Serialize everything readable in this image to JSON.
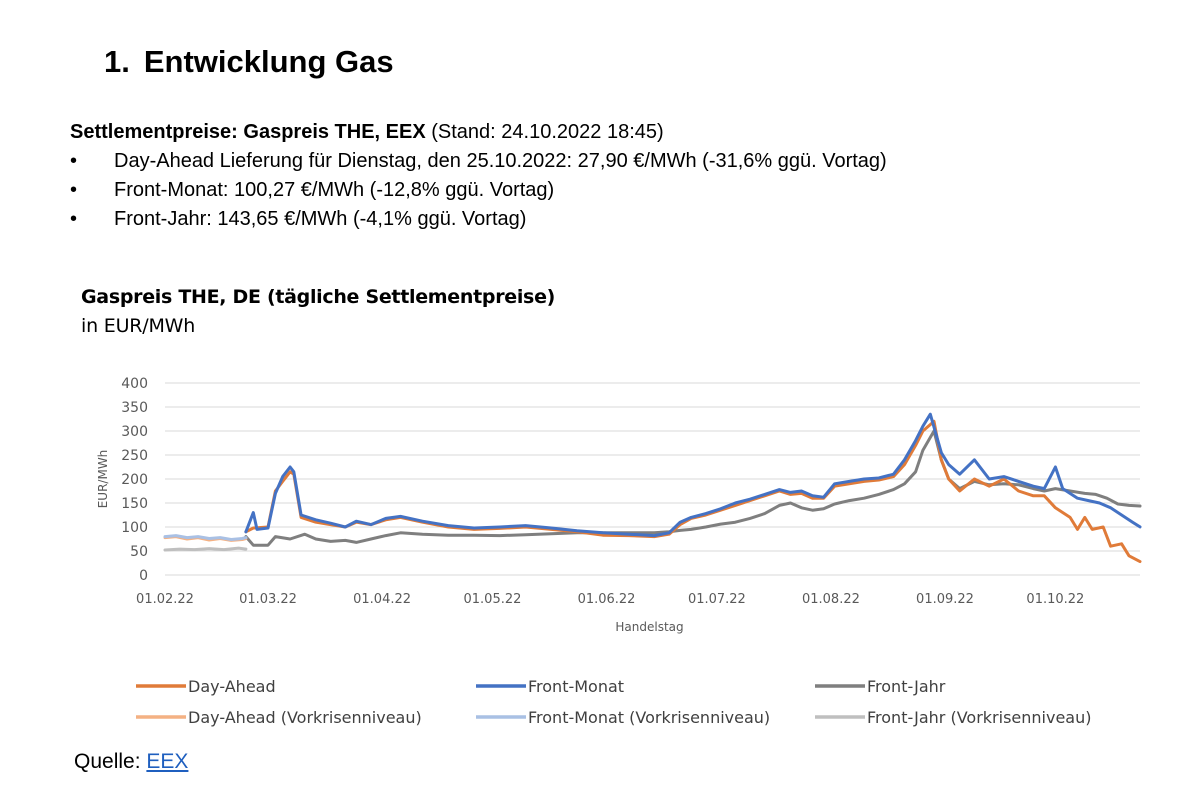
{
  "section": {
    "number": "1.",
    "title": "Entwicklung Gas"
  },
  "settlement": {
    "label": "Settlementpreise: Gaspreis THE, EEX",
    "stand": "(Stand: 24.10.2022 18:45)",
    "bullets": [
      "Day-Ahead Lieferung für Dienstag, den 25.10.2022: 27,90 €/MWh (-31,6% ggü. Vortag)",
      "Front-Monat: 100,27 €/MWh (-12,8% ggü. Vortag)",
      "Front-Jahr: 143,65 €/MWh (-4,1% ggü. Vortag)"
    ],
    "bullet_glyph": "•"
  },
  "source": {
    "label": "Quelle:",
    "link_text": "EEX"
  },
  "chart_data": {
    "type": "line",
    "title": "Gaspreis THE, DE (tägliche Settlementpreise)",
    "subtitle": "in EUR/MWh",
    "xlabel": "Handelstag",
    "ylabel": "EUR/MWh",
    "ylim": [
      0,
      400
    ],
    "yticks": [
      0,
      50,
      100,
      150,
      200,
      250,
      300,
      350,
      400
    ],
    "xlim": [
      "2022-02-01",
      "2022-10-24"
    ],
    "xticks": [
      {
        "date": "2022-02-01",
        "label": "01.02.22"
      },
      {
        "date": "2022-03-01",
        "label": "01.03.22"
      },
      {
        "date": "2022-04-01",
        "label": "01.04.22"
      },
      {
        "date": "2022-05-01",
        "label": "01.05.22"
      },
      {
        "date": "2022-06-01",
        "label": "01.06.22"
      },
      {
        "date": "2022-07-01",
        "label": "01.07.22"
      },
      {
        "date": "2022-08-01",
        "label": "01.08.22"
      },
      {
        "date": "2022-09-01",
        "label": "01.09.22"
      },
      {
        "date": "2022-10-01",
        "label": "01.10.22"
      }
    ],
    "grid": "horizontal",
    "legend_position": "bottom",
    "series": [
      {
        "name": "Front-Jahr",
        "color": "#7f7f7f",
        "points": [
          [
            "2022-02-23",
            "80"
          ],
          [
            "2022-02-25",
            "62"
          ],
          [
            "2022-03-01",
            "62"
          ],
          [
            "2022-03-03",
            "80"
          ],
          [
            "2022-03-07",
            "75"
          ],
          [
            "2022-03-11",
            "85"
          ],
          [
            "2022-03-14",
            "75"
          ],
          [
            "2022-03-18",
            "70"
          ],
          [
            "2022-03-22",
            "72"
          ],
          [
            "2022-03-25",
            "68"
          ],
          [
            "2022-03-29",
            "75"
          ],
          [
            "2022-04-02",
            "82"
          ],
          [
            "2022-04-06",
            "88"
          ],
          [
            "2022-04-12",
            "85"
          ],
          [
            "2022-04-19",
            "83"
          ],
          [
            "2022-04-26",
            "83"
          ],
          [
            "2022-05-03",
            "82"
          ],
          [
            "2022-05-10",
            "84"
          ],
          [
            "2022-05-17",
            "86"
          ],
          [
            "2022-05-24",
            "88"
          ],
          [
            "2022-05-31",
            "88"
          ],
          [
            "2022-06-07",
            "88"
          ],
          [
            "2022-06-14",
            "88"
          ],
          [
            "2022-06-18",
            "90"
          ],
          [
            "2022-06-21",
            "93"
          ],
          [
            "2022-06-24",
            "95"
          ],
          [
            "2022-06-28",
            "100"
          ],
          [
            "2022-07-02",
            "106"
          ],
          [
            "2022-07-06",
            "110"
          ],
          [
            "2022-07-10",
            "118"
          ],
          [
            "2022-07-14",
            "128"
          ],
          [
            "2022-07-18",
            "145"
          ],
          [
            "2022-07-21",
            "150"
          ],
          [
            "2022-07-24",
            "140"
          ],
          [
            "2022-07-27",
            "135"
          ],
          [
            "2022-07-30",
            "138"
          ],
          [
            "2022-08-02",
            "148"
          ],
          [
            "2022-08-06",
            "155"
          ],
          [
            "2022-08-10",
            "160"
          ],
          [
            "2022-08-14",
            "168"
          ],
          [
            "2022-08-18",
            "178"
          ],
          [
            "2022-08-21",
            "190"
          ],
          [
            "2022-08-24",
            "215"
          ],
          [
            "2022-08-26",
            "260"
          ],
          [
            "2022-08-29",
            "300"
          ],
          [
            "2022-08-31",
            "240"
          ],
          [
            "2022-09-02",
            "200"
          ],
          [
            "2022-09-05",
            "180"
          ],
          [
            "2022-09-09",
            "195"
          ],
          [
            "2022-09-13",
            "188"
          ],
          [
            "2022-09-17",
            "190"
          ],
          [
            "2022-09-21",
            "188"
          ],
          [
            "2022-09-25",
            "180"
          ],
          [
            "2022-09-28",
            "175"
          ],
          [
            "2022-10-01",
            "180"
          ],
          [
            "2022-10-05",
            "175"
          ],
          [
            "2022-10-09",
            "170"
          ],
          [
            "2022-10-12",
            "168"
          ],
          [
            "2022-10-15",
            "160"
          ],
          [
            "2022-10-18",
            "148"
          ],
          [
            "2022-10-21",
            "145"
          ],
          [
            "2022-10-24",
            "143.65"
          ]
        ]
      },
      {
        "name": "Day-Ahead",
        "color": "#e07b39",
        "points": [
          [
            "2022-02-23",
            "90"
          ],
          [
            "2022-02-25",
            "98"
          ],
          [
            "2022-03-01",
            "100"
          ],
          [
            "2022-03-03",
            "175"
          ],
          [
            "2022-03-05",
            "195"
          ],
          [
            "2022-03-07",
            "215"
          ],
          [
            "2022-03-08",
            "210"
          ],
          [
            "2022-03-10",
            "120"
          ],
          [
            "2022-03-14",
            "110"
          ],
          [
            "2022-03-18",
            "105"
          ],
          [
            "2022-03-22",
            "100"
          ],
          [
            "2022-03-25",
            "110"
          ],
          [
            "2022-03-29",
            "105"
          ],
          [
            "2022-04-02",
            "115"
          ],
          [
            "2022-04-06",
            "120"
          ],
          [
            "2022-04-12",
            "110"
          ],
          [
            "2022-04-19",
            "100"
          ],
          [
            "2022-04-26",
            "95"
          ],
          [
            "2022-05-03",
            "97"
          ],
          [
            "2022-05-10",
            "100"
          ],
          [
            "2022-05-17",
            "95"
          ],
          [
            "2022-05-24",
            "90"
          ],
          [
            "2022-05-31",
            "83"
          ],
          [
            "2022-06-07",
            "82"
          ],
          [
            "2022-06-14",
            "80"
          ],
          [
            "2022-06-18",
            "85"
          ],
          [
            "2022-06-21",
            "105"
          ],
          [
            "2022-06-24",
            "118"
          ],
          [
            "2022-06-28",
            "125"
          ],
          [
            "2022-07-02",
            "135"
          ],
          [
            "2022-07-06",
            "145"
          ],
          [
            "2022-07-10",
            "155"
          ],
          [
            "2022-07-14",
            "165"
          ],
          [
            "2022-07-18",
            "175"
          ],
          [
            "2022-07-21",
            "168"
          ],
          [
            "2022-07-24",
            "170"
          ],
          [
            "2022-07-27",
            "160"
          ],
          [
            "2022-07-30",
            "160"
          ],
          [
            "2022-08-02",
            "185"
          ],
          [
            "2022-08-06",
            "190"
          ],
          [
            "2022-08-10",
            "195"
          ],
          [
            "2022-08-14",
            "198"
          ],
          [
            "2022-08-18",
            "205"
          ],
          [
            "2022-08-21",
            "230"
          ],
          [
            "2022-08-24",
            "270"
          ],
          [
            "2022-08-26",
            "300"
          ],
          [
            "2022-08-29",
            "320"
          ],
          [
            "2022-08-31",
            "240"
          ],
          [
            "2022-09-02",
            "200"
          ],
          [
            "2022-09-05",
            "175"
          ],
          [
            "2022-09-09",
            "200"
          ],
          [
            "2022-09-13",
            "185"
          ],
          [
            "2022-09-17",
            "200"
          ],
          [
            "2022-09-21",
            "175"
          ],
          [
            "2022-09-25",
            "165"
          ],
          [
            "2022-09-28",
            "165"
          ],
          [
            "2022-10-01",
            "140"
          ],
          [
            "2022-10-05",
            "120"
          ],
          [
            "2022-10-07",
            "95"
          ],
          [
            "2022-10-09",
            "120"
          ],
          [
            "2022-10-11",
            "95"
          ],
          [
            "2022-10-14",
            "100"
          ],
          [
            "2022-10-16",
            "60"
          ],
          [
            "2022-10-19",
            "65"
          ],
          [
            "2022-10-21",
            "40"
          ],
          [
            "2022-10-24",
            "27.9"
          ]
        ]
      },
      {
        "name": "Front-Monat",
        "color": "#4472c4",
        "points": [
          [
            "2022-02-23",
            "90"
          ],
          [
            "2022-02-25",
            "130"
          ],
          [
            "2022-02-26",
            "95"
          ],
          [
            "2022-03-01",
            "98"
          ],
          [
            "2022-03-03",
            "170"
          ],
          [
            "2022-03-05",
            "205"
          ],
          [
            "2022-03-07",
            "225"
          ],
          [
            "2022-03-08",
            "215"
          ],
          [
            "2022-03-10",
            "125"
          ],
          [
            "2022-03-14",
            "115"
          ],
          [
            "2022-03-18",
            "108"
          ],
          [
            "2022-03-22",
            "100"
          ],
          [
            "2022-03-25",
            "112"
          ],
          [
            "2022-03-29",
            "105"
          ],
          [
            "2022-04-02",
            "118"
          ],
          [
            "2022-04-06",
            "122"
          ],
          [
            "2022-04-12",
            "112"
          ],
          [
            "2022-04-19",
            "103"
          ],
          [
            "2022-04-26",
            "98"
          ],
          [
            "2022-05-03",
            "100"
          ],
          [
            "2022-05-10",
            "103"
          ],
          [
            "2022-05-17",
            "98"
          ],
          [
            "2022-05-24",
            "92"
          ],
          [
            "2022-05-31",
            "88"
          ],
          [
            "2022-06-07",
            "85"
          ],
          [
            "2022-06-14",
            "82"
          ],
          [
            "2022-06-18",
            "88"
          ],
          [
            "2022-06-21",
            "110"
          ],
          [
            "2022-06-24",
            "120"
          ],
          [
            "2022-06-28",
            "128"
          ],
          [
            "2022-07-02",
            "138"
          ],
          [
            "2022-07-06",
            "150"
          ],
          [
            "2022-07-10",
            "158"
          ],
          [
            "2022-07-14",
            "168"
          ],
          [
            "2022-07-18",
            "178"
          ],
          [
            "2022-07-21",
            "172"
          ],
          [
            "2022-07-24",
            "175"
          ],
          [
            "2022-07-27",
            "165"
          ],
          [
            "2022-07-30",
            "162"
          ],
          [
            "2022-08-02",
            "190"
          ],
          [
            "2022-08-06",
            "195"
          ],
          [
            "2022-08-10",
            "200"
          ],
          [
            "2022-08-14",
            "202"
          ],
          [
            "2022-08-18",
            "210"
          ],
          [
            "2022-08-21",
            "240"
          ],
          [
            "2022-08-24",
            "280"
          ],
          [
            "2022-08-26",
            "310"
          ],
          [
            "2022-08-28",
            "335"
          ],
          [
            "2022-08-31",
            "255"
          ],
          [
            "2022-09-02",
            "230"
          ],
          [
            "2022-09-05",
            "210"
          ],
          [
            "2022-09-09",
            "240"
          ],
          [
            "2022-09-13",
            "200"
          ],
          [
            "2022-09-17",
            "205"
          ],
          [
            "2022-09-21",
            "195"
          ],
          [
            "2022-09-25",
            "185"
          ],
          [
            "2022-09-28",
            "180"
          ],
          [
            "2022-10-01",
            "225"
          ],
          [
            "2022-10-03",
            "180"
          ],
          [
            "2022-10-07",
            "160"
          ],
          [
            "2022-10-10",
            "155"
          ],
          [
            "2022-10-13",
            "150"
          ],
          [
            "2022-10-16",
            "140"
          ],
          [
            "2022-10-19",
            "125"
          ],
          [
            "2022-10-22",
            "110"
          ],
          [
            "2022-10-24",
            "100.27"
          ]
        ]
      },
      {
        "name": "Day-Ahead (Vorkrisenniveau)",
        "color": "#f4b183",
        "points": [
          [
            "2022-02-01",
            "78"
          ],
          [
            "2022-02-04",
            "80"
          ],
          [
            "2022-02-07",
            "75"
          ],
          [
            "2022-02-10",
            "78"
          ],
          [
            "2022-02-13",
            "73"
          ],
          [
            "2022-02-16",
            "76"
          ],
          [
            "2022-02-19",
            "72"
          ],
          [
            "2022-02-22",
            "74"
          ],
          [
            "2022-02-23",
            "76"
          ]
        ]
      },
      {
        "name": "Front-Monat (Vorkrisenniveau)",
        "color": "#a9c0e4",
        "points": [
          [
            "2022-02-01",
            "80"
          ],
          [
            "2022-02-04",
            "82"
          ],
          [
            "2022-02-07",
            "78"
          ],
          [
            "2022-02-10",
            "80"
          ],
          [
            "2022-02-13",
            "76"
          ],
          [
            "2022-02-16",
            "78"
          ],
          [
            "2022-02-19",
            "74"
          ],
          [
            "2022-02-22",
            "76"
          ],
          [
            "2022-02-23",
            "78"
          ]
        ]
      },
      {
        "name": "Front-Jahr (Vorkrisenniveau)",
        "color": "#bfbfbf",
        "points": [
          [
            "2022-02-01",
            "52"
          ],
          [
            "2022-02-05",
            "54"
          ],
          [
            "2022-02-09",
            "53"
          ],
          [
            "2022-02-13",
            "55"
          ],
          [
            "2022-02-17",
            "53"
          ],
          [
            "2022-02-21",
            "56"
          ],
          [
            "2022-02-23",
            "54"
          ]
        ]
      }
    ],
    "legend": [
      "Day-Ahead",
      "Front-Monat",
      "Front-Jahr",
      "Day-Ahead (Vorkrisenniveau)",
      "Front-Monat (Vorkrisenniveau)",
      "Front-Jahr (Vorkrisenniveau)"
    ]
  }
}
